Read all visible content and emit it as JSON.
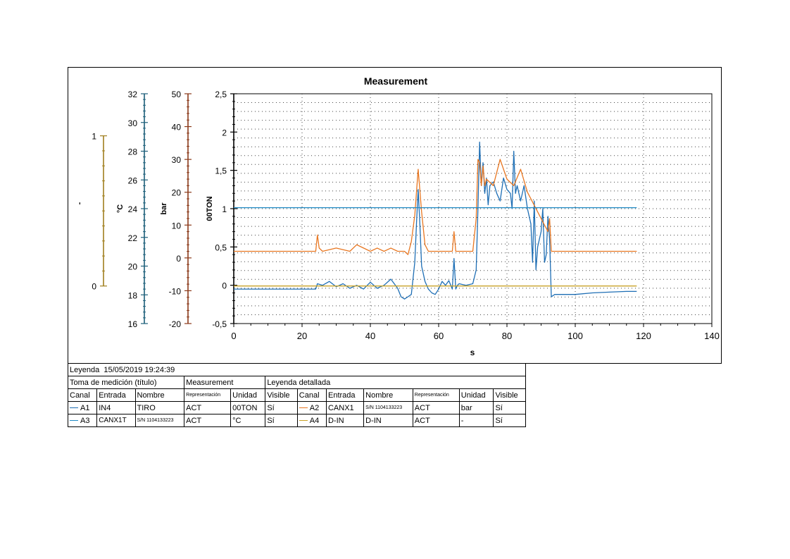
{
  "chart_data": {
    "type": "line",
    "title": "Measurement",
    "xlabel": "s",
    "xlim": [
      0,
      140
    ],
    "xticks": [
      "0",
      "20",
      "40",
      "60",
      "80",
      "100",
      "120",
      "140"
    ],
    "grid": true,
    "axes": [
      {
        "key": "dig",
        "label": "-",
        "color": "#a07f1e",
        "min": -0.25,
        "max": 1.28,
        "ticks": [
          {
            "v": 0,
            "label": "0"
          },
          {
            "v": 1,
            "label": "1"
          }
        ]
      },
      {
        "key": "temp",
        "label": "°C",
        "color": "#1d5f7a",
        "min": 16,
        "max": 32,
        "ticks": [
          {
            "v": 16,
            "label": "16"
          },
          {
            "v": 18,
            "label": "18"
          },
          {
            "v": 20,
            "label": "20"
          },
          {
            "v": 22,
            "label": "22"
          },
          {
            "v": 24,
            "label": "24"
          },
          {
            "v": 26,
            "label": "26"
          },
          {
            "v": 28,
            "label": "28"
          },
          {
            "v": 30,
            "label": "30"
          },
          {
            "v": 32,
            "label": "32"
          }
        ]
      },
      {
        "key": "bar",
        "label": "bar",
        "color": "#8b3a1a",
        "min": -20,
        "max": 50,
        "ticks": [
          {
            "v": -20,
            "label": "-20"
          },
          {
            "v": -10,
            "label": "-10"
          },
          {
            "v": 0,
            "label": "0"
          },
          {
            "v": 10,
            "label": "10"
          },
          {
            "v": 20,
            "label": "20"
          },
          {
            "v": 30,
            "label": "30"
          },
          {
            "v": 40,
            "label": "40"
          },
          {
            "v": 50,
            "label": "50"
          }
        ]
      },
      {
        "key": "ton",
        "label": "00TON",
        "color": "#000000",
        "min": -0.5,
        "max": 2.5,
        "ticks": [
          {
            "v": -0.5,
            "label": "-0,5"
          },
          {
            "v": 0,
            "label": "0"
          },
          {
            "v": 0.5,
            "label": "0,5"
          },
          {
            "v": 1,
            "label": "1"
          },
          {
            "v": 1.5,
            "label": "1,5"
          },
          {
            "v": 2,
            "label": "2"
          },
          {
            "v": 2.5,
            "label": "2,5"
          }
        ]
      }
    ],
    "series": [
      {
        "name": "TIRO",
        "axis": "ton",
        "color": "#1f6fb5",
        "x": [
          0,
          10,
          20,
          24,
          24.5,
          26,
          28,
          30,
          32,
          34,
          36,
          38,
          40,
          42,
          44,
          46,
          48,
          49,
          50,
          51,
          52,
          53,
          53.5,
          54,
          54.5,
          55,
          56,
          57,
          58,
          59,
          60,
          61,
          62,
          63,
          64,
          64.5,
          65,
          65.5,
          66,
          68,
          70,
          71,
          71.5,
          72,
          72.5,
          73,
          73.5,
          74,
          74.5,
          75,
          76,
          77,
          78,
          79,
          80,
          81,
          81.5,
          82,
          82.5,
          83,
          84,
          85,
          86,
          87,
          87.5,
          88,
          88.5,
          89,
          90,
          90.5,
          91,
          91.5,
          92,
          92.5,
          93,
          94,
          96,
          100,
          105,
          110,
          115,
          118
        ],
        "y": [
          -0.05,
          -0.05,
          -0.05,
          -0.05,
          0.02,
          0.0,
          0.05,
          -0.02,
          0.02,
          -0.04,
          0.0,
          -0.05,
          0.04,
          -0.04,
          0.0,
          0.08,
          -0.04,
          -0.15,
          -0.18,
          -0.15,
          -0.12,
          0.3,
          0.8,
          1.25,
          0.8,
          0.25,
          0.05,
          -0.05,
          -0.1,
          -0.12,
          -0.05,
          0.05,
          0.0,
          0.06,
          -0.05,
          0.35,
          -0.05,
          0.0,
          0.02,
          0.0,
          0.02,
          0.2,
          1.0,
          1.87,
          1.3,
          1.6,
          1.2,
          1.4,
          1.05,
          1.3,
          1.35,
          1.2,
          1.1,
          1.4,
          1.25,
          1.2,
          1.0,
          1.75,
          1.2,
          1.3,
          1.1,
          1.3,
          1.0,
          0.8,
          0.3,
          1.1,
          0.2,
          0.5,
          0.7,
          1.0,
          0.3,
          0.4,
          0.9,
          0.6,
          -0.15,
          -0.12,
          -0.12,
          -0.12,
          -0.1,
          -0.09,
          -0.08,
          -0.08
        ]
      },
      {
        "name": "S/N 1104133223",
        "axis": "bar",
        "color": "#e87722",
        "x": [
          0,
          20,
          24,
          24.5,
          25,
          26,
          30,
          34,
          36,
          40,
          42,
          44,
          46,
          48,
          50,
          51,
          52,
          53,
          54,
          55,
          56,
          57,
          58,
          60,
          64,
          64.5,
          65,
          66,
          70,
          71,
          71.5,
          72,
          72.5,
          73,
          73.5,
          74,
          76,
          78,
          80,
          82,
          84,
          86,
          88,
          90,
          92,
          92.5,
          93,
          100,
          118
        ],
        "y": [
          2,
          2,
          2,
          7,
          3,
          2,
          3,
          2,
          4,
          2,
          3,
          2,
          3,
          2,
          2,
          1,
          5,
          13,
          27,
          14,
          4,
          2,
          2,
          2,
          2,
          8,
          2,
          2,
          2,
          12,
          30,
          29,
          22,
          28,
          22,
          24,
          22,
          30,
          24,
          22,
          27,
          20,
          16,
          12,
          8,
          12,
          2,
          2,
          2
        ],
        "step": false
      },
      {
        "name": "S/N 1104133223",
        "axis": "temp",
        "color": "#1f8ac4",
        "x": [
          0,
          118
        ],
        "y": [
          24.07,
          24.07
        ]
      },
      {
        "name": "D-IN",
        "axis": "dig",
        "color": "#c9a227",
        "x": [
          0,
          118
        ],
        "y": [
          0,
          0
        ]
      }
    ]
  },
  "legend": {
    "header_label": "Leyenda",
    "timestamp": "15/05/2019  19:24:39",
    "title_label": "Toma de medición (título)",
    "title_value": "Measurement",
    "detail_label": "Leyenda detallada",
    "columns": [
      "Canal",
      "Entrada",
      "Nombre",
      "Representación",
      "Unidad",
      "Visible",
      "Canal",
      "Entrada",
      "Nombre",
      "Representación",
      "Unidad",
      "Visible"
    ],
    "rows": [
      [
        {
          "canal": "A1",
          "color": "#1f6fb5",
          "entrada": "IN4",
          "nombre": "TIRO",
          "rep": "ACT",
          "unidad": "00TON",
          "visible": "Sí"
        },
        {
          "canal": "A2",
          "color": "#e87722",
          "entrada": "CANX1",
          "nombre": "S/N 1104133223",
          "rep": "ACT",
          "unidad": "bar",
          "visible": "Sí"
        }
      ],
      [
        {
          "canal": "A3",
          "color": "#1f8ac4",
          "entrada": "CANX1T",
          "nombre": "S/N 1104133223",
          "rep": "ACT",
          "unidad": "°C",
          "visible": "Sí"
        },
        {
          "canal": "A4",
          "color": "#c9a227",
          "entrada": "D-IN",
          "nombre": "D-IN",
          "rep": "ACT",
          "unidad": "-",
          "visible": "Sí"
        }
      ]
    ]
  }
}
